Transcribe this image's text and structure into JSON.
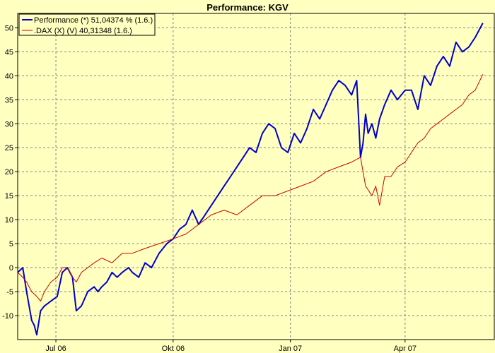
{
  "chart_data": {
    "type": "line",
    "title": "Performance: KGV",
    "xlabel": "",
    "ylabel": "",
    "ylim": [
      -15,
      53
    ],
    "grid": true,
    "legend_position": "top-left",
    "y_ticks": [
      50,
      45,
      40,
      35,
      30,
      25,
      20,
      15,
      10,
      5,
      0,
      -5,
      -10
    ],
    "y_tick_labels": [
      "50",
      "45",
      "40",
      "35",
      "30",
      "25",
      "20",
      "15",
      "10",
      "5",
      "0",
      "-5",
      "-10"
    ],
    "x_ticks": [
      {
        "date": "2006-07-01",
        "label": "Jul 06"
      },
      {
        "date": "2006-10-01",
        "label": "Okt 06"
      },
      {
        "date": "2007-01-01",
        "label": "Jan 07"
      },
      {
        "date": "2007-04-01",
        "label": "Apr 07"
      }
    ],
    "x_range": [
      "2006-06-01",
      "2007-06-10"
    ],
    "series": [
      {
        "name": "Performance (*) 51,04374 % (1.6.)",
        "color": "#0000cc",
        "width": 2,
        "x": [
          "2006-06-01",
          "2006-06-05",
          "2006-06-08",
          "2006-06-12",
          "2006-06-14",
          "2006-06-16",
          "2006-06-19",
          "2006-06-22",
          "2006-06-27",
          "2006-07-02",
          "2006-07-06",
          "2006-07-10",
          "2006-07-14",
          "2006-07-17",
          "2006-07-21",
          "2006-07-26",
          "2006-07-31",
          "2006-08-03",
          "2006-08-06",
          "2006-08-10",
          "2006-08-14",
          "2006-08-18",
          "2006-08-22",
          "2006-08-27",
          "2006-08-30",
          "2006-09-04",
          "2006-09-09",
          "2006-09-14",
          "2006-09-20",
          "2006-09-26",
          "2006-10-01",
          "2006-10-06",
          "2006-10-11",
          "2006-10-16",
          "2006-10-21",
          "2006-10-26",
          "2006-10-31",
          "2006-11-05",
          "2006-11-10",
          "2006-11-15",
          "2006-11-20",
          "2006-11-25",
          "2006-11-30",
          "2006-12-05",
          "2006-12-10",
          "2006-12-15",
          "2006-12-20",
          "2006-12-25",
          "2006-12-30",
          "2007-01-04",
          "2007-01-09",
          "2007-01-14",
          "2007-01-19",
          "2007-01-24",
          "2007-01-29",
          "2007-02-03",
          "2007-02-08",
          "2007-02-13",
          "2007-02-18",
          "2007-02-22",
          "2007-02-25",
          "2007-02-27",
          "2007-03-01",
          "2007-03-03",
          "2007-03-06",
          "2007-03-09",
          "2007-03-12",
          "2007-03-16",
          "2007-03-21",
          "2007-03-26",
          "2007-04-01",
          "2007-04-06",
          "2007-04-11",
          "2007-04-16",
          "2007-04-21",
          "2007-04-26",
          "2007-05-01",
          "2007-05-06",
          "2007-05-11",
          "2007-05-16",
          "2007-05-21",
          "2007-05-26",
          "2007-06-01"
        ],
        "values": [
          -1,
          0,
          -5,
          -11,
          -12,
          -14,
          -9,
          -8,
          -7,
          -6,
          -1,
          0,
          -2,
          -9,
          -8,
          -5,
          -4,
          -5,
          -4,
          -3,
          -1,
          -2,
          -1,
          0,
          -1,
          -2,
          1,
          0,
          3,
          5,
          6,
          8,
          9,
          12,
          9,
          11,
          13,
          15,
          17,
          19,
          21,
          23,
          25,
          24,
          28,
          30,
          29,
          25,
          24,
          28,
          26,
          29,
          33,
          31,
          34,
          37,
          39,
          38,
          36,
          39,
          23,
          26,
          32,
          28,
          30,
          27,
          31,
          34,
          37,
          35,
          37,
          37,
          33,
          40,
          38,
          42,
          44,
          42,
          47,
          45,
          46,
          48,
          51
        ]
      },
      {
        "name": ".DAX (X) (V) 40,31348 (1.6.)",
        "color": "#cc0000",
        "width": 1,
        "x": [
          "2006-06-01",
          "2006-06-05",
          "2006-06-08",
          "2006-06-12",
          "2006-06-16",
          "2006-06-19",
          "2006-06-22",
          "2006-06-27",
          "2006-07-02",
          "2006-07-06",
          "2006-07-10",
          "2006-07-14",
          "2006-07-17",
          "2006-07-21",
          "2006-07-26",
          "2006-07-31",
          "2006-08-06",
          "2006-08-14",
          "2006-08-22",
          "2006-08-30",
          "2006-09-09",
          "2006-09-20",
          "2006-10-01",
          "2006-10-11",
          "2006-10-21",
          "2006-10-31",
          "2006-11-10",
          "2006-11-20",
          "2006-11-30",
          "2006-12-10",
          "2006-12-20",
          "2006-12-30",
          "2007-01-09",
          "2007-01-19",
          "2007-01-29",
          "2007-02-08",
          "2007-02-18",
          "2007-02-25",
          "2007-03-01",
          "2007-03-06",
          "2007-03-09",
          "2007-03-12",
          "2007-03-16",
          "2007-03-21",
          "2007-03-26",
          "2007-04-01",
          "2007-04-06",
          "2007-04-11",
          "2007-04-16",
          "2007-04-21",
          "2007-04-26",
          "2007-05-01",
          "2007-05-06",
          "2007-05-11",
          "2007-05-16",
          "2007-05-21",
          "2007-05-26",
          "2007-06-01"
        ],
        "values": [
          -1,
          -2,
          -3,
          -5,
          -6,
          -7,
          -5,
          -3,
          -2,
          0,
          0,
          -2,
          -3,
          -1,
          0,
          1,
          2,
          1,
          3,
          3,
          4,
          5,
          6,
          7,
          9,
          11,
          12,
          11,
          13,
          15,
          15,
          16,
          17,
          18,
          20,
          21,
          22,
          23,
          17,
          15,
          17,
          13,
          19,
          19,
          21,
          22,
          24,
          26,
          27,
          29,
          30,
          31,
          32,
          33,
          34,
          36,
          37,
          40.3
        ]
      }
    ]
  }
}
